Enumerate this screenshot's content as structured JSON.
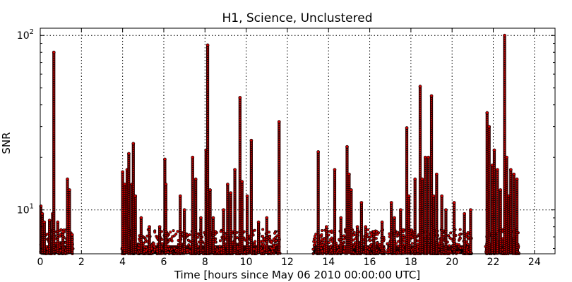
{
  "chart_data": {
    "type": "scatter",
    "title": "H1, Science, Unclustered",
    "xlabel": "Time [hours since May 06 2010 00:00:00 UTC]",
    "ylabel": "SNR",
    "xlim": [
      0,
      25
    ],
    "ylim": [
      5.6,
      110
    ],
    "yscale": "log",
    "grid": true,
    "marker_color": "#d40000",
    "edge_color": "#000000",
    "snr_floor": 5.6,
    "x_ticks": [
      {
        "value": 0,
        "label": "0"
      },
      {
        "value": 2,
        "label": "2"
      },
      {
        "value": 4,
        "label": "4"
      },
      {
        "value": 6,
        "label": "6"
      },
      {
        "value": 8,
        "label": "8"
      },
      {
        "value": 10,
        "label": "10"
      },
      {
        "value": 12,
        "label": "12"
      },
      {
        "value": 14,
        "label": "14"
      },
      {
        "value": 16,
        "label": "16"
      },
      {
        "value": 18,
        "label": "18"
      },
      {
        "value": 20,
        "label": "20"
      },
      {
        "value": 22,
        "label": "22"
      },
      {
        "value": 24,
        "label": "24"
      }
    ],
    "y_ticks": [
      {
        "value": 10,
        "base": "10",
        "exp": "1"
      },
      {
        "value": 100,
        "base": "10",
        "exp": "2"
      }
    ],
    "segments": [
      {
        "start": 0.0,
        "end": 1.6
      },
      {
        "start": 3.95,
        "end": 11.65
      },
      {
        "start": 13.25,
        "end": 16.75
      },
      {
        "start": 16.85,
        "end": 20.95
      },
      {
        "start": 21.6,
        "end": 23.25
      }
    ],
    "peaks": [
      {
        "x": 0.03,
        "y": 10.5
      },
      {
        "x": 0.1,
        "y": 9.5
      },
      {
        "x": 0.2,
        "y": 8.5
      },
      {
        "x": 0.45,
        "y": 8.7
      },
      {
        "x": 0.6,
        "y": 9.5
      },
      {
        "x": 0.66,
        "y": 80
      },
      {
        "x": 0.85,
        "y": 8.5
      },
      {
        "x": 1.1,
        "y": 7.5
      },
      {
        "x": 1.32,
        "y": 15
      },
      {
        "x": 1.42,
        "y": 13
      },
      {
        "x": 1.55,
        "y": 7.2
      },
      {
        "x": 4.0,
        "y": 16.5
      },
      {
        "x": 4.1,
        "y": 14
      },
      {
        "x": 4.22,
        "y": 17
      },
      {
        "x": 4.3,
        "y": 21
      },
      {
        "x": 4.45,
        "y": 14
      },
      {
        "x": 4.52,
        "y": 24
      },
      {
        "x": 4.62,
        "y": 12
      },
      {
        "x": 4.9,
        "y": 9
      },
      {
        "x": 5.3,
        "y": 8
      },
      {
        "x": 5.8,
        "y": 8
      },
      {
        "x": 6.05,
        "y": 19.5
      },
      {
        "x": 6.1,
        "y": 14
      },
      {
        "x": 6.8,
        "y": 12
      },
      {
        "x": 7.0,
        "y": 10
      },
      {
        "x": 7.4,
        "y": 20
      },
      {
        "x": 7.55,
        "y": 15
      },
      {
        "x": 7.8,
        "y": 9
      },
      {
        "x": 8.05,
        "y": 22
      },
      {
        "x": 8.13,
        "y": 88
      },
      {
        "x": 8.25,
        "y": 13
      },
      {
        "x": 8.4,
        "y": 9
      },
      {
        "x": 8.9,
        "y": 10
      },
      {
        "x": 9.1,
        "y": 14
      },
      {
        "x": 9.25,
        "y": 12.5
      },
      {
        "x": 9.45,
        "y": 17
      },
      {
        "x": 9.7,
        "y": 44
      },
      {
        "x": 9.8,
        "y": 14.5
      },
      {
        "x": 10.05,
        "y": 12
      },
      {
        "x": 10.25,
        "y": 25
      },
      {
        "x": 10.6,
        "y": 8.5
      },
      {
        "x": 11.0,
        "y": 9
      },
      {
        "x": 11.6,
        "y": 32
      },
      {
        "x": 13.5,
        "y": 21.5
      },
      {
        "x": 13.9,
        "y": 8
      },
      {
        "x": 14.3,
        "y": 17
      },
      {
        "x": 14.6,
        "y": 9
      },
      {
        "x": 14.9,
        "y": 23
      },
      {
        "x": 15.0,
        "y": 16
      },
      {
        "x": 15.1,
        "y": 13
      },
      {
        "x": 15.4,
        "y": 8
      },
      {
        "x": 15.6,
        "y": 11
      },
      {
        "x": 15.8,
        "y": 8
      },
      {
        "x": 16.2,
        "y": 7.5
      },
      {
        "x": 16.6,
        "y": 8.5
      },
      {
        "x": 17.05,
        "y": 11
      },
      {
        "x": 17.2,
        "y": 9
      },
      {
        "x": 17.5,
        "y": 10
      },
      {
        "x": 17.8,
        "y": 29.5
      },
      {
        "x": 17.9,
        "y": 12
      },
      {
        "x": 18.2,
        "y": 15
      },
      {
        "x": 18.45,
        "y": 51
      },
      {
        "x": 18.55,
        "y": 15
      },
      {
        "x": 18.7,
        "y": 20
      },
      {
        "x": 18.85,
        "y": 20
      },
      {
        "x": 19.0,
        "y": 45
      },
      {
        "x": 19.1,
        "y": 12
      },
      {
        "x": 19.25,
        "y": 16
      },
      {
        "x": 19.5,
        "y": 12
      },
      {
        "x": 19.7,
        "y": 10
      },
      {
        "x": 20.1,
        "y": 11
      },
      {
        "x": 20.6,
        "y": 9.5
      },
      {
        "x": 20.9,
        "y": 10
      },
      {
        "x": 21.7,
        "y": 36
      },
      {
        "x": 21.8,
        "y": 30
      },
      {
        "x": 21.95,
        "y": 18
      },
      {
        "x": 22.05,
        "y": 22
      },
      {
        "x": 22.2,
        "y": 17
      },
      {
        "x": 22.35,
        "y": 13
      },
      {
        "x": 22.55,
        "y": 100
      },
      {
        "x": 22.65,
        "y": 20
      },
      {
        "x": 22.75,
        "y": 12
      },
      {
        "x": 22.85,
        "y": 17
      },
      {
        "x": 23.0,
        "y": 16
      },
      {
        "x": 23.15,
        "y": 15
      }
    ]
  }
}
